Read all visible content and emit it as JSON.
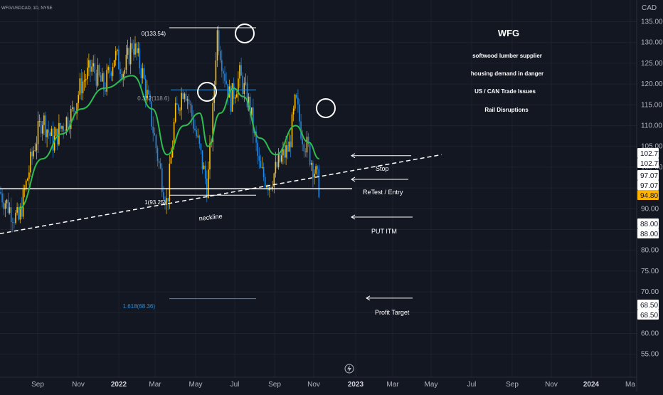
{
  "header": {
    "symbol_line": "WFG/USDCAD, 1D, NYSE"
  },
  "axis": {
    "currency": "CAD",
    "y_ticks": [
      135,
      130,
      125,
      120,
      115,
      110,
      105,
      100,
      95,
      90,
      85,
      80,
      75,
      70,
      65,
      60,
      55
    ],
    "x_ticks": [
      {
        "label": "Sep",
        "bold": false
      },
      {
        "label": "Nov",
        "bold": false
      },
      {
        "label": "2022",
        "bold": true
      },
      {
        "label": "Mar",
        "bold": false
      },
      {
        "label": "May",
        "bold": false
      },
      {
        "label": "Jul",
        "bold": false
      },
      {
        "label": "Sep",
        "bold": false
      },
      {
        "label": "Nov",
        "bold": false
      },
      {
        "label": "2023",
        "bold": true
      },
      {
        "label": "Mar",
        "bold": false
      },
      {
        "label": "May",
        "bold": false
      },
      {
        "label": "Jul",
        "bold": false
      },
      {
        "label": "Sep",
        "bold": false
      },
      {
        "label": "Nov",
        "bold": false
      },
      {
        "label": "2024",
        "bold": true
      },
      {
        "label": "Ma",
        "bold": false
      }
    ]
  },
  "price_badges": [
    {
      "value": "102.77",
      "style": "light"
    },
    {
      "value": "102.77",
      "style": "light"
    },
    {
      "value": "97.07",
      "style": "light"
    },
    {
      "value": "97.07",
      "style": "light"
    },
    {
      "value": "94.80",
      "style": "current"
    },
    {
      "value": "88.00",
      "style": "light"
    },
    {
      "value": "88.00",
      "style": "light"
    },
    {
      "value": "68.50",
      "style": "light"
    },
    {
      "value": "68.50",
      "style": "light"
    }
  ],
  "fib_labels": {
    "top": "0(133.54)",
    "mid": "0.382(118.6)",
    "base": "1(93.25)",
    "ext": "1.618(68.36)"
  },
  "annotations": {
    "stop": "Stop",
    "retest": "ReTest / Entry",
    "put": "PUT ITM",
    "target": "Profit Target",
    "neckline": "neckline"
  },
  "info_panel": {
    "title": "WFG",
    "lines": [
      "softwood lumber supplier",
      "housing demand in danger",
      "US / CAN Trade Issues",
      "Rail Disruptions"
    ]
  },
  "chart_data": {
    "type": "candlestick",
    "title": "WFG/USDCAD, 1D, NYSE",
    "y_unit": "CAD",
    "ylim": [
      52,
      138
    ],
    "xlim": [
      "2021-08-10",
      "2024-05-01"
    ],
    "price_series": {
      "name": "WFG/USDCAD daily close (approx.)",
      "points": [
        [
          "2021-08-10",
          94
        ],
        [
          "2021-08-25",
          90
        ],
        [
          "2021-09-08",
          87
        ],
        [
          "2021-09-20",
          96
        ],
        [
          "2021-10-01",
          104
        ],
        [
          "2021-10-15",
          112
        ],
        [
          "2021-11-01",
          106
        ],
        [
          "2021-11-15",
          110
        ],
        [
          "2021-12-01",
          113
        ],
        [
          "2021-12-15",
          120
        ],
        [
          "2022-01-01",
          124
        ],
        [
          "2022-01-20",
          119
        ],
        [
          "2022-02-05",
          127
        ],
        [
          "2022-02-20",
          123
        ],
        [
          "2022-03-05",
          130
        ],
        [
          "2022-03-20",
          123
        ],
        [
          "2022-04-01",
          114
        ],
        [
          "2022-04-15",
          101
        ],
        [
          "2022-04-28",
          91
        ],
        [
          "2022-05-10",
          112
        ],
        [
          "2022-05-25",
          120
        ],
        [
          "2022-06-05",
          113
        ],
        [
          "2022-06-18",
          104
        ],
        [
          "2022-06-30",
          95
        ],
        [
          "2022-07-08",
          111
        ],
        [
          "2022-07-15",
          133
        ],
        [
          "2022-07-25",
          124
        ],
        [
          "2022-08-05",
          116
        ],
        [
          "2022-08-20",
          122
        ],
        [
          "2022-09-05",
          114
        ],
        [
          "2022-09-20",
          99
        ],
        [
          "2022-10-05",
          96
        ],
        [
          "2022-10-20",
          101
        ],
        [
          "2022-11-05",
          105
        ],
        [
          "2022-11-15",
          116
        ],
        [
          "2022-11-25",
          108
        ],
        [
          "2022-12-05",
          104
        ],
        [
          "2022-12-15",
          99
        ],
        [
          "2022-12-22",
          95
        ]
      ]
    },
    "moving_average": {
      "points": [
        [
          "2021-09-08",
          90
        ],
        [
          "2021-10-15",
          102
        ],
        [
          "2021-11-15",
          108
        ],
        [
          "2021-12-15",
          114
        ],
        [
          "2022-01-20",
          119
        ],
        [
          "2022-03-05",
          122
        ],
        [
          "2022-04-05",
          114
        ],
        [
          "2022-04-28",
          103
        ],
        [
          "2022-05-25",
          110
        ],
        [
          "2022-06-18",
          113
        ],
        [
          "2022-07-01",
          105
        ],
        [
          "2022-07-20",
          113
        ],
        [
          "2022-08-10",
          119
        ],
        [
          "2022-08-25",
          117
        ],
        [
          "2022-09-20",
          107
        ],
        [
          "2022-10-15",
          103
        ],
        [
          "2022-11-15",
          110
        ],
        [
          "2022-12-05",
          106
        ],
        [
          "2022-12-22",
          102
        ]
      ]
    },
    "levels": [
      {
        "label": "0(133.54)",
        "value": 133.54
      },
      {
        "label": "0.382(118.6)",
        "value": 118.6
      },
      {
        "label": "1(93.25)",
        "value": 93.25
      },
      {
        "label": "1.618(68.36)",
        "value": 68.36
      },
      {
        "label": "Stop",
        "value": 102.77
      },
      {
        "label": "ReTest / Entry",
        "value": 97.07
      },
      {
        "label": "PUT ITM",
        "value": 88.0
      },
      {
        "label": "Profit Target",
        "value": 68.5
      }
    ],
    "neckline": {
      "label": "neckline",
      "from": [
        "2021-08-10",
        84
      ],
      "to": [
        "2023-07-01",
        103
      ]
    },
    "support": 94.8,
    "last_price": 94.8
  }
}
